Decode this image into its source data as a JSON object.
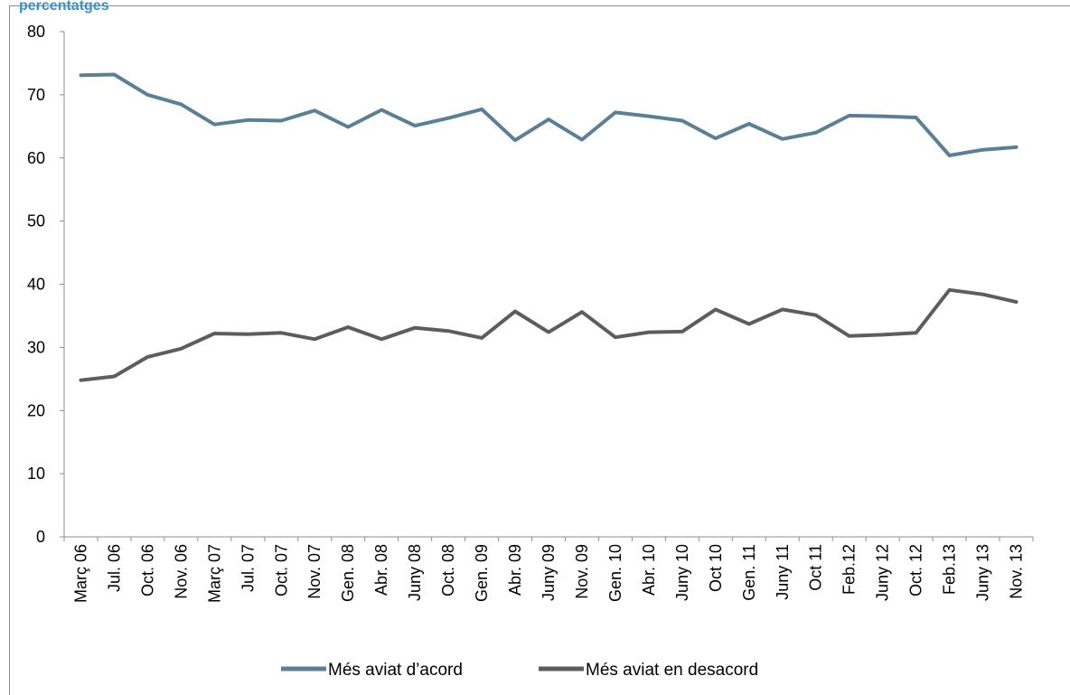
{
  "title": "percentatges",
  "chart_data": {
    "type": "line",
    "title": "percentatges",
    "xlabel": "",
    "ylabel": "",
    "ylim": [
      0,
      80
    ],
    "yticks": [
      0,
      10,
      20,
      30,
      40,
      50,
      60,
      70,
      80
    ],
    "grid": false,
    "legend_position": "bottom",
    "categories": [
      "Març 06",
      "Jul. 06",
      "Oct. 06",
      "Nov. 06",
      "Març 07",
      "Jul. 07",
      "Oct. 07",
      "Nov. 07",
      "Gen. 08",
      "Abr. 08",
      "Juny 08",
      "Oct. 08",
      "Gen. 09",
      "Abr. 09",
      "Juny 09",
      "Nov. 09",
      "Gen. 10",
      "Abr. 10",
      "Juny 10",
      "Oct 10",
      "Gen. 11",
      "Juny 11",
      "Oct 11",
      "Feb.12",
      "Juny 12",
      "Oct. 12",
      "Feb.13",
      "Juny 13",
      "Nov. 13"
    ],
    "series": [
      {
        "name": "Més aviat d’acord",
        "color": "#5b7f95",
        "values": [
          73.1,
          73.2,
          70.0,
          68.5,
          65.3,
          66.0,
          65.9,
          67.5,
          64.9,
          67.6,
          65.1,
          66.3,
          67.7,
          62.8,
          66.1,
          62.9,
          67.2,
          66.6,
          65.9,
          63.1,
          65.4,
          63.0,
          64.0,
          66.7,
          66.6,
          66.4,
          60.4,
          61.3,
          61.7
        ]
      },
      {
        "name": "Més aviat en desacord",
        "color": "#5d5d5d",
        "values": [
          24.8,
          25.4,
          28.5,
          29.8,
          32.2,
          32.1,
          32.3,
          31.3,
          33.2,
          31.3,
          33.1,
          32.6,
          31.5,
          35.7,
          32.4,
          35.6,
          31.6,
          32.4,
          32.5,
          36.0,
          33.7,
          36.0,
          35.1,
          31.8,
          32.0,
          32.3,
          39.1,
          38.4,
          37.2
        ]
      }
    ]
  }
}
